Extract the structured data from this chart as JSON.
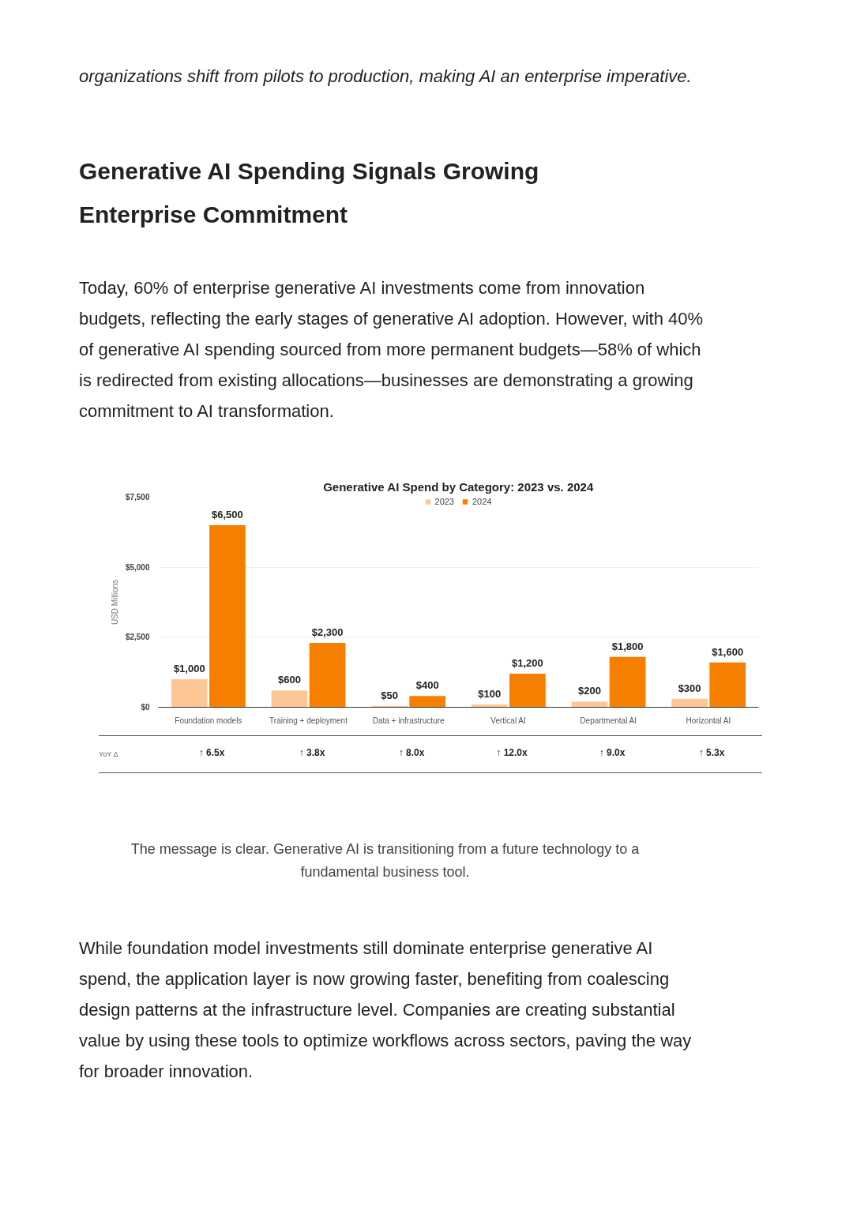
{
  "chart_data": {
    "type": "bar",
    "title": "Generative AI Spend by Category: 2023 vs. 2024",
    "ylabel": "USD Millions",
    "categories": [
      "Foundation models",
      "Training + deployment",
      "Data + infrastructure",
      "Vertical AI",
      "Departmental AI",
      "Horizontal AI"
    ],
    "series": [
      {
        "name": "2023",
        "color": "#fdc795",
        "values": [
          1000,
          600,
          50,
          100,
          200,
          300
        ],
        "value_labels": [
          "$1,000",
          "$600",
          "$50",
          "$100",
          "$200",
          "$300"
        ]
      },
      {
        "name": "2024",
        "color": "#f77f00",
        "values": [
          6500,
          2300,
          400,
          1200,
          1800,
          1600
        ],
        "value_labels": [
          "$6,500",
          "$2,300",
          "$400",
          "$1,200",
          "$1,800",
          "$1,600"
        ]
      }
    ],
    "ylim": [
      0,
      7500
    ],
    "yticks": [
      {
        "value": 0,
        "label": "$0"
      },
      {
        "value": 2500,
        "label": "$2,500"
      },
      {
        "value": 5000,
        "label": "$5,000"
      },
      {
        "value": 7500,
        "label": "$7,500"
      }
    ],
    "grid": "y",
    "legend": "top",
    "annotations": [
      "organizations shift from pilots to production, making AI an enterprise imperative.",
      "Generative AI Spending Signals Growing Enterprise Commitment",
      "Today, 60% of enterprise generative AI investments come from innovation budgets, reflecting the early stages of generative AI adoption. However, with 40% of generative AI spending sourced from more permanent budgets—58% of which is redirected from existing allocations—businesses are demonstrating a growing commitment to AI transformation.",
      "YoY Δ",
      "The message is clear. Generative AI is transitioning from a future technology to a fundamental business tool.",
      "While foundation model investments still dominate enterprise generative AI spend, the application layer is now growing faster, benefiting from coalescing design patterns at the infrastructure level. Companies are creating substantial value by using these tools to optimize workflows across sectors, paving the way for broader innovation.",
      "↑ 6.5x",
      "↑ 3.8x",
      "↑ 8.0x",
      "↑ 12.0x",
      "↑ 9.0x",
      "↑ 5.3x"
    ]
  }
}
